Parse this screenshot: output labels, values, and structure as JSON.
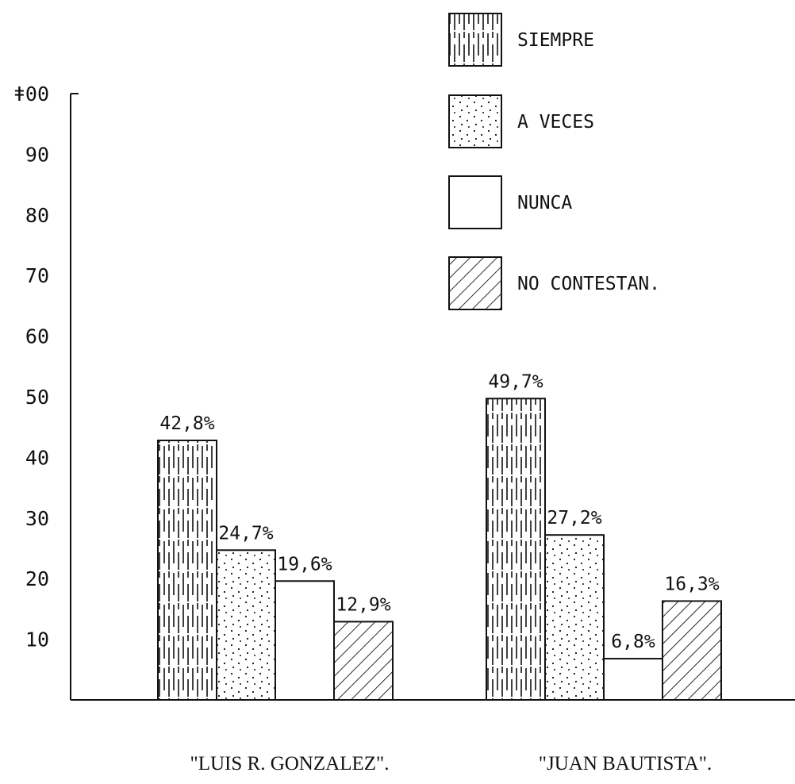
{
  "chart_data": {
    "type": "bar",
    "categories": [
      "\"LUIS R. GONZALEZ\".",
      "\"JUAN BAUTISTA\"."
    ],
    "series": [
      {
        "name": "SIEMPRE",
        "values": [
          42.8,
          49.7
        ],
        "labels": [
          "42,8%",
          "49,7%"
        ],
        "pattern": "vertical-dashes"
      },
      {
        "name": "A VECES",
        "values": [
          24.7,
          27.2
        ],
        "labels": [
          "24,7%",
          "27,2%"
        ],
        "pattern": "dots"
      },
      {
        "name": "NUNCA",
        "values": [
          19.6,
          6.8
        ],
        "labels": [
          "19,6%",
          "6,8%"
        ],
        "pattern": "none"
      },
      {
        "name": "NO CONTESTAN.",
        "values": [
          12.9,
          16.3
        ],
        "labels": [
          "12,9%",
          "16,3%"
        ],
        "pattern": "diagonal-hatch"
      }
    ],
    "y_ticks": [
      "10",
      "20",
      "30",
      "40",
      "50",
      "60",
      "70",
      "80",
      "90",
      "ǂ00"
    ],
    "y_tick_values": [
      10,
      20,
      30,
      40,
      50,
      60,
      70,
      80,
      90,
      100
    ],
    "ylim": [
      0,
      100
    ],
    "xlabel": "",
    "ylabel": "",
    "legend_position": "top-right",
    "grid": false
  }
}
